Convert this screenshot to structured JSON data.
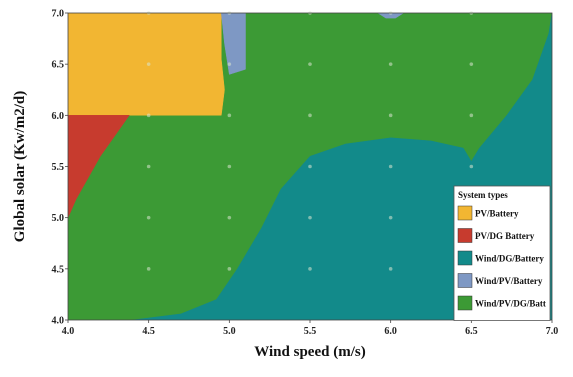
{
  "chart_data": {
    "type": "heatmap",
    "subtype": "optimal system type map",
    "xlabel": "Wind speed (m/s)",
    "ylabel": "Global solar (Kw/m2/d)",
    "xlim": [
      4.0,
      7.0
    ],
    "ylim": [
      4.0,
      7.0
    ],
    "xticks": [
      "4.0",
      "4.5",
      "5.0",
      "5.5",
      "6.0",
      "6.5",
      "7.0"
    ],
    "yticks": [
      "4.0",
      "4.5",
      "5.0",
      "5.5",
      "6.0",
      "6.5",
      "7.0"
    ],
    "grid": false,
    "legend_title": "System types",
    "legend_position": "right",
    "categories": [
      {
        "label": "PV/Battery",
        "color": "#f2b632"
      },
      {
        "label": "PV/DG Battery",
        "color": "#c73b2e"
      },
      {
        "label": "Wind/DG/Battery",
        "color": "#128a8a"
      },
      {
        "label": "Wind/PV/Battery",
        "color": "#7e98c4"
      },
      {
        "label": "Wind/PV/DG/Batt",
        "color": "#3c9a35"
      }
    ],
    "regions": [
      {
        "category": "Wind/PV/DG/Batt",
        "polygon": [
          [
            4.0,
            4.0
          ],
          [
            7.0,
            4.0
          ],
          [
            7.0,
            7.0
          ],
          [
            4.0,
            7.0
          ]
        ]
      },
      {
        "category": "Wind/DG/Battery",
        "polygon": [
          [
            4.4,
            4.0
          ],
          [
            4.7,
            4.06
          ],
          [
            4.92,
            4.2
          ],
          [
            5.05,
            4.5
          ],
          [
            5.2,
            4.9
          ],
          [
            5.32,
            5.28
          ],
          [
            5.5,
            5.6
          ],
          [
            5.72,
            5.72
          ],
          [
            6.0,
            5.78
          ],
          [
            6.25,
            5.75
          ],
          [
            6.45,
            5.68
          ],
          [
            6.5,
            5.55
          ],
          [
            6.55,
            5.68
          ],
          [
            6.72,
            6.0
          ],
          [
            6.88,
            6.35
          ],
          [
            6.98,
            6.8
          ],
          [
            7.0,
            7.0
          ],
          [
            7.0,
            4.0
          ]
        ]
      },
      {
        "category": "PV/Battery",
        "polygon": [
          [
            4.0,
            6.0
          ],
          [
            4.95,
            6.0
          ],
          [
            4.97,
            6.25
          ],
          [
            4.95,
            6.55
          ],
          [
            4.95,
            7.0
          ],
          [
            4.0,
            7.0
          ]
        ]
      },
      {
        "category": "PV/DG Battery",
        "polygon": [
          [
            4.0,
            6.0
          ],
          [
            4.38,
            6.0
          ],
          [
            4.2,
            5.6
          ],
          [
            4.05,
            5.18
          ],
          [
            4.0,
            5.0
          ]
        ]
      },
      {
        "category": "Wind/PV/Battery",
        "polygon": [
          [
            4.95,
            7.0
          ],
          [
            5.1,
            7.0
          ],
          [
            5.1,
            6.45
          ],
          [
            5.0,
            6.4
          ],
          [
            4.97,
            6.7
          ]
        ]
      },
      {
        "category": "Wind/PV/Battery",
        "polygon": [
          [
            5.92,
            7.0
          ],
          [
            6.08,
            7.0
          ],
          [
            6.03,
            6.95
          ],
          [
            5.97,
            6.95
          ]
        ]
      }
    ],
    "sample_points": {
      "x": [
        4.0,
        4.5,
        5.0,
        5.5,
        6.0,
        6.5,
        7.0
      ],
      "y": [
        4.0,
        4.5,
        5.0,
        5.5,
        6.0,
        6.5,
        7.0
      ]
    }
  }
}
